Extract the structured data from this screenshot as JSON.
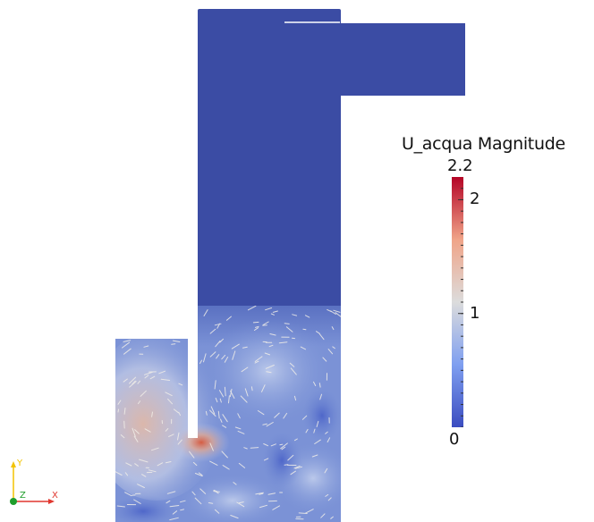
{
  "viewer": {
    "scalar_field": "U_acqua Magnitude",
    "colormap": "Cool to Warm",
    "colors": {
      "background": "#ffffff",
      "low": "#3b4cc0",
      "mid": "#dddddd",
      "high": "#b40426"
    }
  },
  "legend": {
    "title": "U_acqua Magnitude",
    "range": [
      0,
      2.2
    ],
    "max_label": "2.2",
    "min_label": "0",
    "tick_labels": [
      {
        "value": 2,
        "text": "2"
      },
      {
        "value": 1,
        "text": "1"
      }
    ]
  },
  "orientation_axes": {
    "x_label": "X",
    "y_label": "Y",
    "z_label": "Z",
    "x_color": "#e0372f",
    "y_color": "#f2c300",
    "z_color": "#1f9e2c"
  }
}
